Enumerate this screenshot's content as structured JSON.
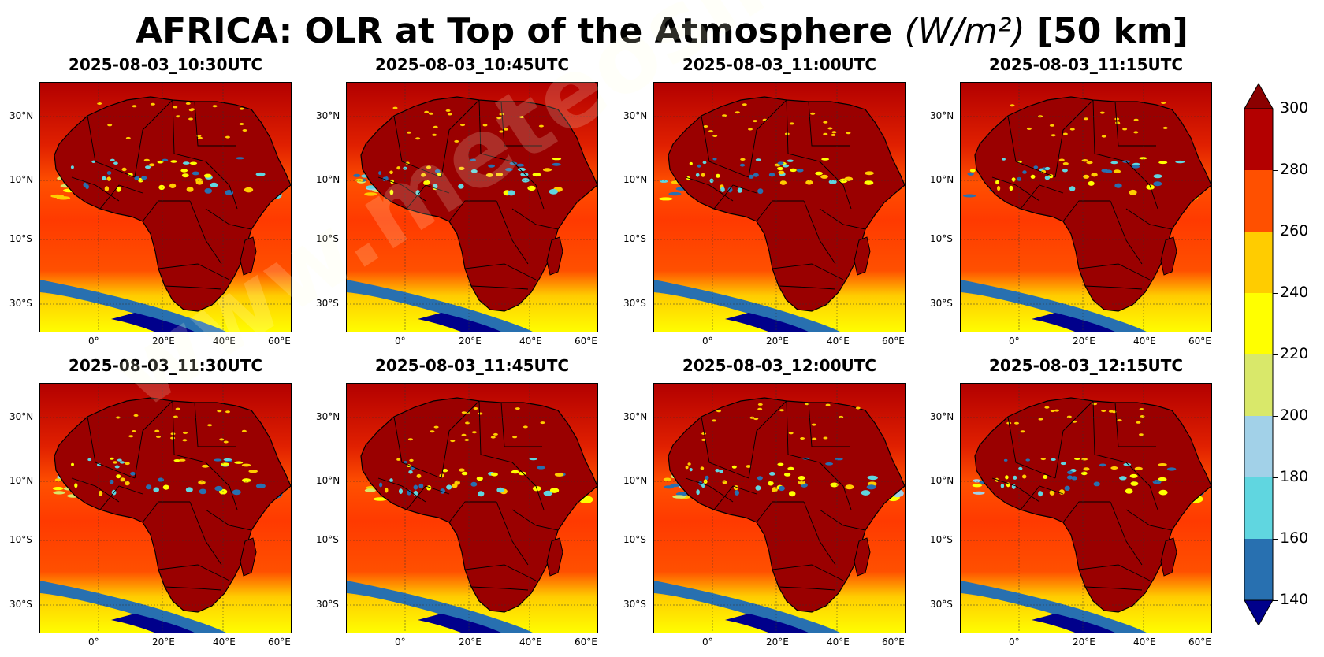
{
  "title": {
    "prefix": "AFRICA: OLR at Top of the Atmosphere ",
    "unit": "(W/m²)",
    "suffix": " [50 km]"
  },
  "watermark": "www.meteosimulation.com",
  "lat_labels": [
    "30°N",
    "10°N",
    "10°S",
    "30°S"
  ],
  "lon_labels": [
    "0°",
    "20°E",
    "40°E",
    "60°E"
  ],
  "panels": [
    {
      "time": "2025-08-03_10:30UTC"
    },
    {
      "time": "2025-08-03_10:45UTC"
    },
    {
      "time": "2025-08-03_11:00UTC"
    },
    {
      "time": "2025-08-03_11:15UTC"
    },
    {
      "time": "2025-08-03_11:30UTC"
    },
    {
      "time": "2025-08-03_11:45UTC"
    },
    {
      "time": "2025-08-03_12:00UTC"
    },
    {
      "time": "2025-08-03_12:15UTC"
    }
  ],
  "colorbar": {
    "ticks": [
      "300",
      "280",
      "260",
      "240",
      "220",
      "200",
      "180",
      "160",
      "140"
    ],
    "colors_top_to_bottom": [
      "#b30000",
      "#ff5000",
      "#ffcc00",
      "#ffff00",
      "#d9e86a",
      "#a2d1e8",
      "#60d6e0",
      "#2870b0"
    ],
    "extend_max_color": "#8b0000",
    "extend_min_color": "#00008b"
  }
}
